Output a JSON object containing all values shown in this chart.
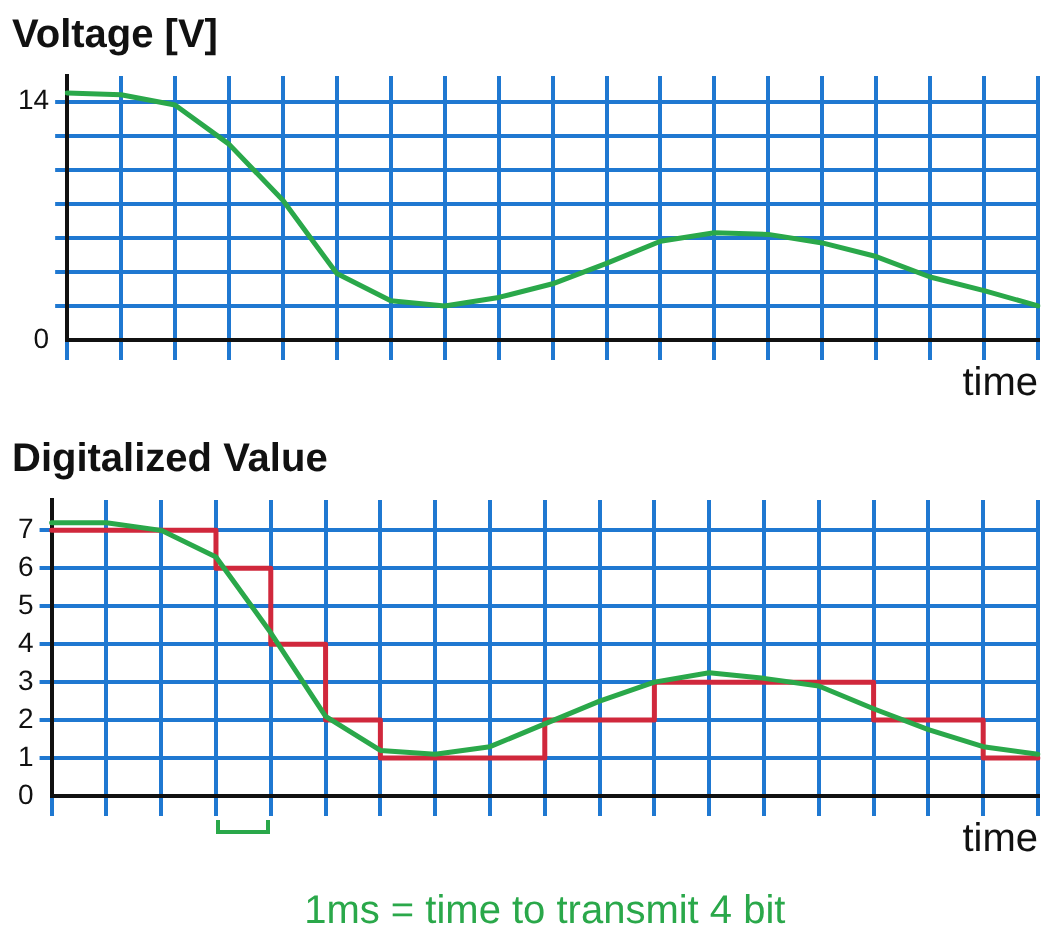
{
  "chart_data": [
    {
      "type": "line",
      "ylabel": "Voltage [V]",
      "xlabel": "time",
      "categories": [
        null,
        null,
        null,
        null,
        null,
        null,
        null,
        null,
        null,
        null,
        null,
        null,
        null,
        null,
        null,
        null,
        null,
        null,
        null
      ],
      "series": [
        {
          "color": "#2aa84a",
          "values": [
            14.5,
            14.4,
            13.8,
            11.5,
            8.2,
            3.9,
            2.3,
            2.0,
            2.5,
            3.3,
            4.5,
            5.8,
            6.3,
            6.2,
            5.7,
            4.9,
            3.7,
            2.9,
            2.0
          ]
        }
      ],
      "ylim": [
        0,
        15.5
      ],
      "yticks": [
        0,
        {
          "value": 2,
          "label": null
        },
        {
          "value": 4,
          "label": null
        },
        {
          "value": 6,
          "label": null
        },
        {
          "value": 8,
          "label": null
        },
        {
          "value": 10,
          "label": null
        },
        {
          "value": 12,
          "label": null
        },
        14
      ],
      "grid": true,
      "legend": false,
      "marker": "none",
      "line_style": "solid",
      "tick_labels": "y"
    },
    {
      "type": "line",
      "ylabel": "Digitalized Value",
      "xlabel": "time",
      "categories": [
        null,
        null,
        null,
        null,
        null,
        null,
        null,
        null,
        null,
        null,
        null,
        null,
        null,
        null,
        null,
        null,
        null,
        null,
        null
      ],
      "series": [
        {
          "color": "#2aa84a",
          "values": [
            7.2,
            7.2,
            7.0,
            6.3,
            4.3,
            2.1,
            1.2,
            1.1,
            1.3,
            1.9,
            2.5,
            3.0,
            3.25,
            3.1,
            2.9,
            2.3,
            1.75,
            1.3,
            1.1
          ]
        },
        {
          "type": "step",
          "color": "#d0283c",
          "values": [
            7,
            7,
            7,
            6,
            4,
            2,
            1,
            1,
            1,
            2,
            2,
            3,
            3,
            3,
            3,
            2,
            2,
            1,
            1
          ]
        }
      ],
      "ylim": [
        0,
        7.8
      ],
      "yticks": [
        0,
        1,
        2,
        3,
        4,
        5,
        6,
        7
      ],
      "annotations": [
        "1ms = time to transmit 4 bit"
      ],
      "grid": true,
      "legend": false,
      "marker": "none",
      "line_style": "solid",
      "tick_labels": "y"
    }
  ]
}
